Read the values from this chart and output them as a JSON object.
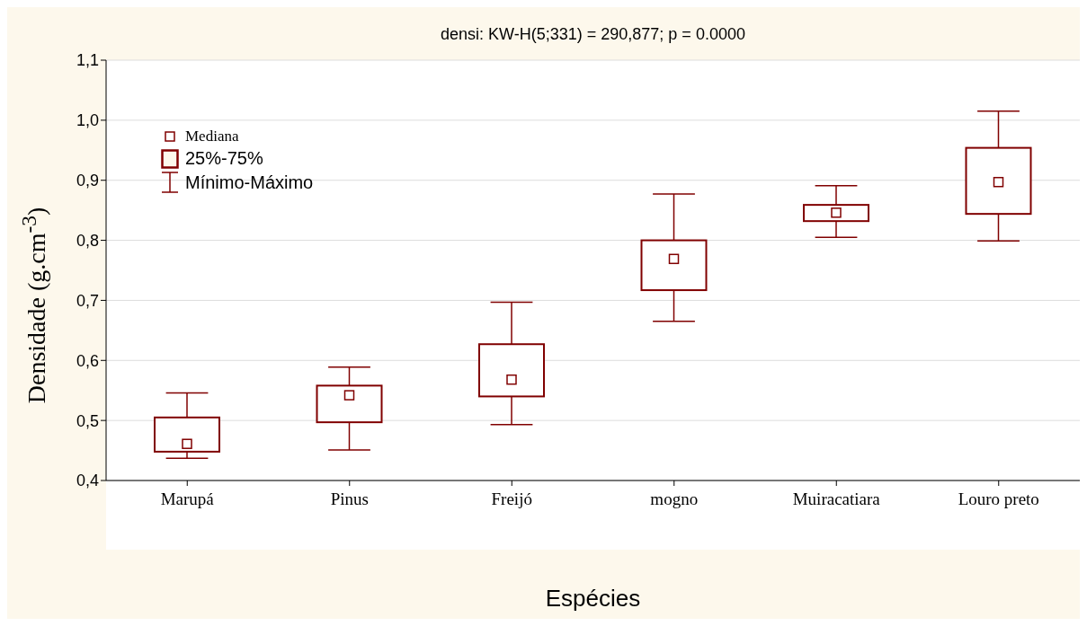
{
  "chart_data": {
    "type": "box",
    "title": "densi:  KW-H(5;331) = 290,877; p = 0.0000",
    "xlabel": "Espécies",
    "ylabel": "Densidade (g.cm$^{-3}$)",
    "categories": [
      "Marupá",
      "Pinus",
      "Freijó",
      "mogno",
      "Muiracatiara",
      "Louro preto"
    ],
    "color": "#800000",
    "marker": "square",
    "grid": "y",
    "annotations": [
      "Mediana",
      "25%-75%",
      "Mínimo-Máximo"
    ],
    "boxes": [
      {
        "low": 0.437,
        "q1": 0.448,
        "median": 0.461,
        "q3": 0.505,
        "high": 0.546
      },
      {
        "low": 0.451,
        "q1": 0.497,
        "median": 0.542,
        "q3": 0.558,
        "high": 0.589
      },
      {
        "low": 0.493,
        "q1": 0.54,
        "median": 0.568,
        "q3": 0.627,
        "high": 0.697
      },
      {
        "low": 0.665,
        "q1": 0.717,
        "median": 0.769,
        "q3": 0.8,
        "high": 0.877
      },
      {
        "low": 0.805,
        "q1": 0.832,
        "median": 0.846,
        "q3": 0.859,
        "high": 0.891
      },
      {
        "low": 0.799,
        "q1": 0.844,
        "median": 0.897,
        "q3": 0.954,
        "high": 1.015
      }
    ],
    "ylim": [
      0.4,
      1.1
    ],
    "yticks": [
      {
        "value": 0.4,
        "label": "0,4"
      },
      {
        "value": 0.5,
        "label": "0,5"
      },
      {
        "value": 0.6,
        "label": "0,6"
      },
      {
        "value": 0.7,
        "label": "0,7"
      },
      {
        "value": 0.8,
        "label": "0,8"
      },
      {
        "value": 0.9,
        "label": "0,9"
      },
      {
        "value": 1.0,
        "label": "1,0"
      },
      {
        "value": 1.1,
        "label": "1,1"
      }
    ]
  }
}
